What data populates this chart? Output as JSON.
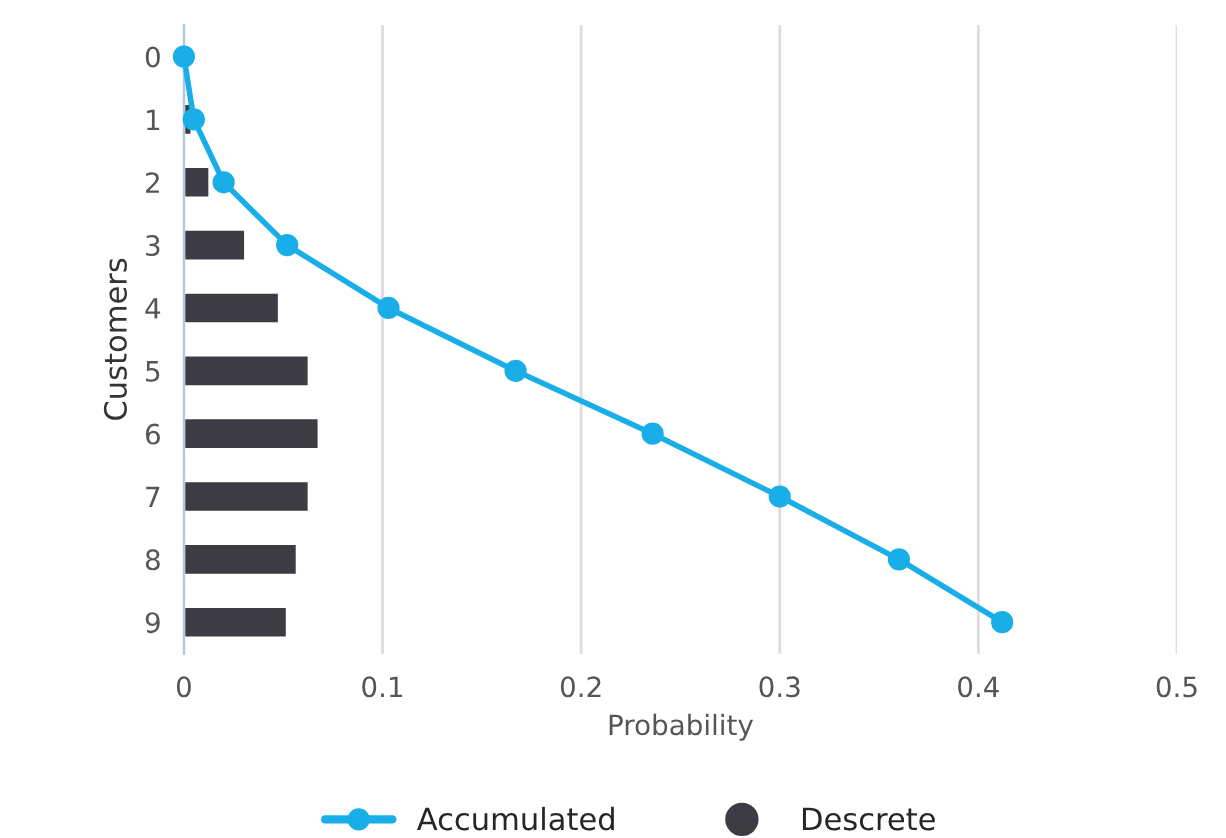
{
  "chart_data": {
    "type": "bar",
    "orientation": "horizontal",
    "ylabel": "Customers",
    "xlabel": "Probability",
    "categories": [
      "0",
      "1",
      "2",
      "3",
      "4",
      "5",
      "6",
      "7",
      "8",
      "9"
    ],
    "series": [
      {
        "name": "Accumulated",
        "type": "line",
        "color": "#1aaee8",
        "marker": "circle",
        "values": [
          0,
          0.005,
          0.02,
          0.052,
          0.103,
          0.167,
          0.236,
          0.3,
          0.36,
          0.412
        ]
      },
      {
        "name": "Descrete",
        "color": "#3d3c42",
        "values": [
          null,
          0.004,
          0.013,
          0.031,
          0.048,
          0.063,
          0.068,
          0.063,
          0.057,
          0.052
        ]
      }
    ],
    "xlim": [
      0,
      0.5
    ],
    "xticks": [
      0,
      0.1,
      0.2,
      0.3,
      0.4,
      0.5
    ],
    "grid": "x",
    "legend": "bottom"
  }
}
